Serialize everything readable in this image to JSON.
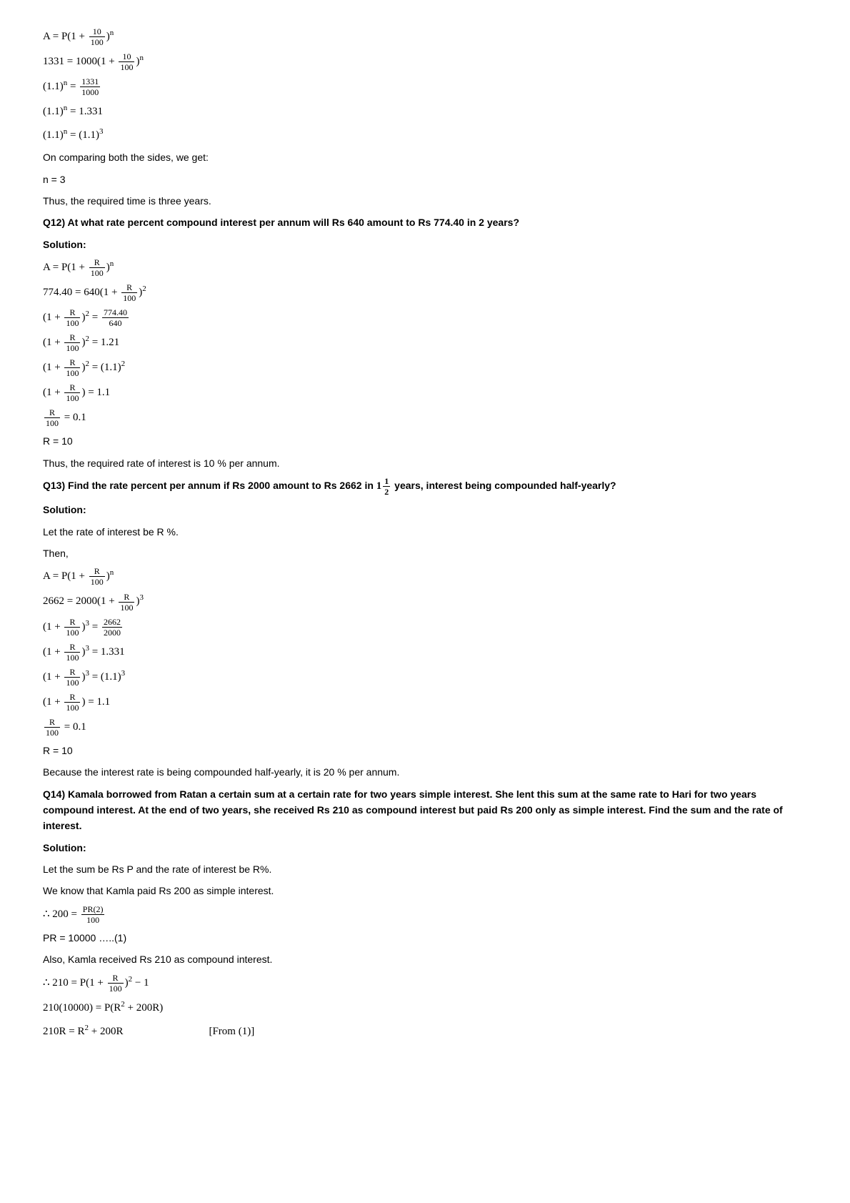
{
  "p1": {
    "l1_a": "A = ",
    "l1_b": "P(1 + ",
    "l1_c": ")",
    "l1_n": "n",
    "f1_num": "10",
    "f1_den": "100",
    "l2_a": "1331 = ",
    "l2_b": "1000(1 + ",
    "l2_c": ")",
    "l2_n": "n",
    "f2_num": "10",
    "f2_den": "100",
    "l3_a": "(1.1)",
    "l3_n": "n",
    "l3_b": " = ",
    "f3_num": "1331",
    "f3_den": "1000",
    "l4_a": "(1.1)",
    "l4_n": "n",
    "l4_b": " = 1.331",
    "l5_a": "(1.1)",
    "l5_n": "n",
    "l5_b": " = (1.1)",
    "l5_n2": "3",
    "l6": "On comparing both the sides, we get:",
    "l7": "n = 3",
    "l8": "Thus, the required time is three years."
  },
  "q12": {
    "title": "Q12) At what rate percent compound interest per annum will Rs 640 amount to Rs 774.40 in 2 years?",
    "sol": "Solution:",
    "l1_a": "A = ",
    "l1_b": "P(1 + ",
    "l1_c": ")",
    "l1_n": "n",
    "f1_num": "R",
    "f1_den": "100",
    "l2_a": "774.40 = ",
    "l2_b": "640(1 + ",
    "l2_c": ")",
    "l2_n": "2",
    "f2_num": "R",
    "f2_den": "100",
    "l3_a": "(1 + ",
    "l3_b": ")",
    "l3_n": "2",
    "l3_c": " = ",
    "f3_num": "R",
    "f3_den": "100",
    "f3b_num": "774.40",
    "f3b_den": "640",
    "l4_a": "(1 + ",
    "l4_b": ")",
    "l4_n": "2",
    "l4_c": " = 1.21",
    "f4_num": "R",
    "f4_den": "100",
    "l5_a": "(1 + ",
    "l5_b": ")",
    "l5_n": "2",
    "l5_c": " = (1.1)",
    "l5_n2": "2",
    "f5_num": "R",
    "f5_den": "100",
    "l6_a": "(1 + ",
    "l6_b": ") = 1.1",
    "f6_num": "R",
    "f6_den": "100",
    "l7_a": " = 0.1",
    "f7_num": "R",
    "f7_den": "100",
    "l8": "R = 10",
    "l9": "Thus, the required rate of interest is 10 % per annum."
  },
  "q13": {
    "title_a": "Q13) Find the rate percent per annum if Rs 2000 amount to Rs 2662 in ",
    "title_b": " years, interest being compounded half-yearly?",
    "tf_num": "1",
    "tf_den": "2",
    "tf_whole": "1",
    "sol": "Solution:",
    "l0": "Let the rate of interest be R %.",
    "l0b": "Then,",
    "l1_a": "A = ",
    "l1_b": "P(1 + ",
    "l1_c": ")",
    "l1_n": "n",
    "f1_num": "R",
    "f1_den": "100",
    "l2_a": "2662 = ",
    "l2_b": "2000(1 + ",
    "l2_c": ")",
    "l2_n": "3",
    "f2_num": "R",
    "f2_den": "100",
    "l3_a": "(1 + ",
    "l3_b": ")",
    "l3_n": "3",
    "l3_c": " = ",
    "f3_num": "R",
    "f3_den": "100",
    "f3b_num": "2662",
    "f3b_den": "2000",
    "l4_a": "(1 + ",
    "l4_b": ")",
    "l4_n": "3",
    "l4_c": " = 1.331",
    "f4_num": "R",
    "f4_den": "100",
    "l5_a": "(1 + ",
    "l5_b": ")",
    "l5_n": "3",
    "l5_c": " = (1.1)",
    "l5_n2": "3",
    "f5_num": "R",
    "f5_den": "100",
    "l6_a": "(1 + ",
    "l6_b": ") = 1.1",
    "f6_num": "R",
    "f6_den": "100",
    "l7_a": " = 0.1",
    "f7_num": "R",
    "f7_den": "100",
    "l8": "R = 10",
    "l9": "Because the interest rate is being compounded half-yearly, it is 20 % per annum."
  },
  "q14": {
    "title": "Q14) Kamala borrowed from Ratan a certain sum at a certain rate for two years simple interest. She lent this sum at the same rate to Hari for two years compound interest. At the end of two years, she received Rs 210 as compound interest but paid Rs 200 only as simple interest. Find the sum and the rate of interest.",
    "sol": "Solution:",
    "l1": "Let the sum be Rs P and the rate of interest be R%.",
    "l2": "We know that Kamla paid Rs 200 as simple interest.",
    "l3_a": "∴ 200 = ",
    "f3_num": "PR(2)",
    "f3_den": "100",
    "l4": "PR = 10000 …..(1)",
    "l5": "Also, Kamla received Rs 210 as compound interest.",
    "l6_a": "∴ 210 = P(1 + ",
    "l6_b": ")",
    "l6_n": "2",
    "l6_c": " − 1",
    "f6_num": "R",
    "f6_den": "100",
    "l7": "210(10000) = P(R",
    "l7_n": "2",
    "l7_b": " + 200R)",
    "l8": "210R = R",
    "l8_n": "2",
    "l8_b": " + 200R",
    "l8_note": "[From (1)]"
  }
}
